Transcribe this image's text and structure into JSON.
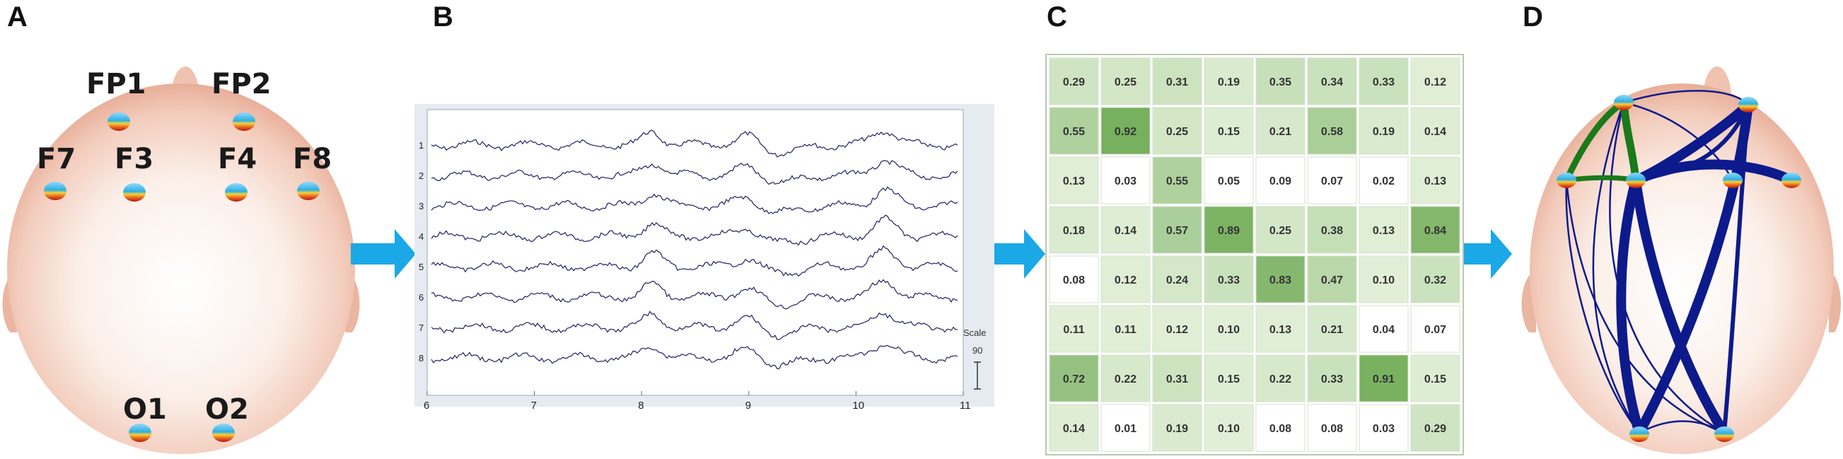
{
  "panels": {
    "a": {
      "letter": "A",
      "electrodes": [
        "FP1",
        "FP2",
        "F7",
        "F3",
        "F4",
        "F8",
        "O1",
        "O2"
      ]
    },
    "b": {
      "letter": "B",
      "channels": [
        "1",
        "2",
        "3",
        "4",
        "5",
        "6",
        "7",
        "8"
      ],
      "x_ticks": [
        "6",
        "7",
        "8",
        "9",
        "10",
        "11"
      ],
      "scale_label": "Scale",
      "scale_value": "90"
    },
    "c": {
      "letter": "C",
      "matrix": [
        [
          "0.29",
          "0.25",
          "0.31",
          "0.19",
          "0.35",
          "0.34",
          "0.33",
          "0.12"
        ],
        [
          "0.55",
          "0.92",
          "0.25",
          "0.15",
          "0.21",
          "0.58",
          "0.19",
          "0.14"
        ],
        [
          "0.13",
          "0.03",
          "0.55",
          "0.05",
          "0.09",
          "0.07",
          "0.02",
          "0.13"
        ],
        [
          "0.18",
          "0.14",
          "0.57",
          "0.89",
          "0.25",
          "0.38",
          "0.13",
          "0.84"
        ],
        [
          "0.08",
          "0.12",
          "0.24",
          "0.33",
          "0.83",
          "0.47",
          "0.10",
          "0.32"
        ],
        [
          "0.11",
          "0.11",
          "0.12",
          "0.10",
          "0.13",
          "0.21",
          "0.04",
          "0.07"
        ],
        [
          "0.72",
          "0.22",
          "0.31",
          "0.15",
          "0.22",
          "0.33",
          "0.91",
          "0.15"
        ],
        [
          "0.14",
          "0.01",
          "0.19",
          "0.10",
          "0.08",
          "0.08",
          "0.03",
          "0.29"
        ]
      ]
    },
    "d": {
      "letter": "D"
    }
  },
  "colors": {
    "skin": "#f0c3b0",
    "arrow": "#1ba8e6",
    "signal": "#2e2e6e",
    "network_blue": "#0d1a8c",
    "network_green": "#1a7a1a",
    "matrix_strong": "#6aa84f",
    "matrix_light": "#e8f3df"
  }
}
